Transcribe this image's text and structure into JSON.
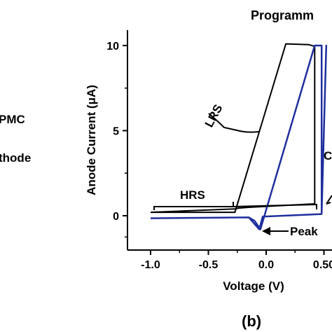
{
  "left_fragments": {
    "line1": "PMC",
    "line2": "thode"
  },
  "panel_label": "(b)",
  "chart_data": {
    "type": "line",
    "title": "Programm",
    "xlabel": "Voltage (V)",
    "ylabel": "Anode Current (μA)",
    "xlim": [
      -1.22,
      0.55
    ],
    "ylim": [
      -1.8,
      11.0
    ],
    "x_ticks": [
      -1.0,
      -0.5,
      0.0,
      0.5
    ],
    "x_tick_labels": [
      "-1.0",
      "-0.5",
      "0.0",
      "0.50"
    ],
    "y_ticks": [
      0,
      5,
      10
    ],
    "y_tick_labels": [
      "0",
      "5",
      "10"
    ],
    "grid": false,
    "series": [
      {
        "color": "#000000",
        "x": [
          -1.0,
          -0.27,
          0.17,
          0.37,
          0.42,
          0.42,
          -0.14,
          -0.24,
          -0.27,
          -1.0
        ],
        "y": [
          0.2,
          0.2,
          10.1,
          10.05,
          9.95,
          0.7,
          0.5,
          0.45,
          0.4,
          0.2
        ]
      },
      {
        "color": "#1f2f9e",
        "x": [
          -1.0,
          -0.15,
          -0.1,
          -0.05,
          0.42,
          0.48,
          0.48,
          0.52,
          0.48,
          -0.03,
          -0.06,
          -0.15,
          -1.0
        ],
        "y": [
          -0.15,
          -0.1,
          -0.3,
          -0.8,
          10.0,
          10.0,
          0.1,
          10.0,
          0.1,
          -0.05,
          -0.8,
          -0.1,
          -0.15
        ]
      }
    ],
    "annotations": [
      {
        "text": "LRS",
        "bracket": true
      },
      {
        "text": "HRS",
        "bracket": true
      },
      {
        "text": "Peak",
        "arrow": true
      },
      {
        "text": "C",
        "clipped": true
      }
    ]
  }
}
